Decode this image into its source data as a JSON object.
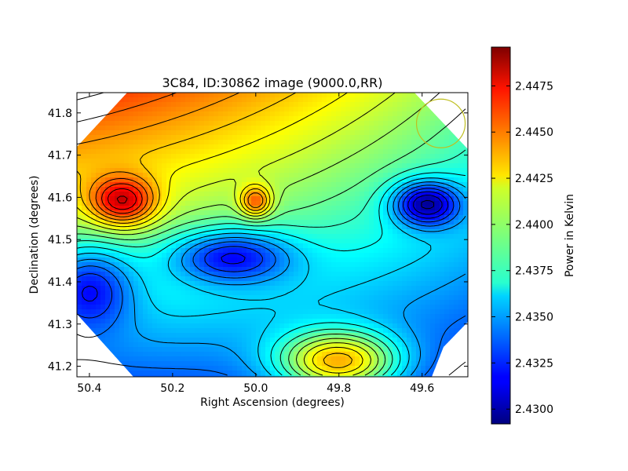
{
  "chart_data": {
    "type": "heatmap",
    "title": "3C84, ID:30862 image (9000.0,RR)",
    "xlabel": "Right Ascension (degrees)",
    "ylabel": "Declination (degrees)",
    "xlim": [
      50.43,
      49.49
    ],
    "ylim": [
      41.175,
      41.848
    ],
    "x_ticks": [
      50.4,
      50.2,
      50.0,
      49.8,
      49.6
    ],
    "x_tick_labels": [
      "50.4",
      "50.2",
      "50.0",
      "49.8",
      "49.6"
    ],
    "y_ticks": [
      41.2,
      41.3,
      41.4,
      41.5,
      41.6,
      41.7,
      41.8
    ],
    "y_tick_labels": [
      "41.2",
      "41.3",
      "41.4",
      "41.5",
      "41.6",
      "41.7",
      "41.8"
    ],
    "colormap": "jet",
    "colorbar": {
      "label": "Power in Kelvin",
      "range": [
        2.4292,
        2.4496
      ],
      "ticks": [
        2.43,
        2.4325,
        2.435,
        2.4375,
        2.44,
        2.4425,
        2.445,
        2.4475
      ],
      "tick_labels": [
        "2.4300",
        "2.4325",
        "2.4350",
        "2.4375",
        "2.4400",
        "2.4425",
        "2.4450",
        "2.4475"
      ]
    },
    "features": [
      {
        "kind": "max",
        "ra": 50.32,
        "dec": 41.59,
        "value": 2.4482
      },
      {
        "kind": "max",
        "ra": 50.0,
        "dec": 41.59,
        "value": 2.4452
      },
      {
        "kind": "min",
        "ra": 49.59,
        "dec": 41.585,
        "value": 2.4297
      },
      {
        "kind": "min",
        "ra": 50.06,
        "dec": 41.46,
        "value": 2.4318
      },
      {
        "kind": "min",
        "ra": 50.4,
        "dec": 41.39,
        "value": 2.432
      },
      {
        "kind": "max",
        "ra": 49.8,
        "dec": 41.21,
        "value": 2.4435
      }
    ],
    "beam_circle": {
      "ra": 49.555,
      "dec": 41.775,
      "color": "#bfbf20"
    }
  }
}
